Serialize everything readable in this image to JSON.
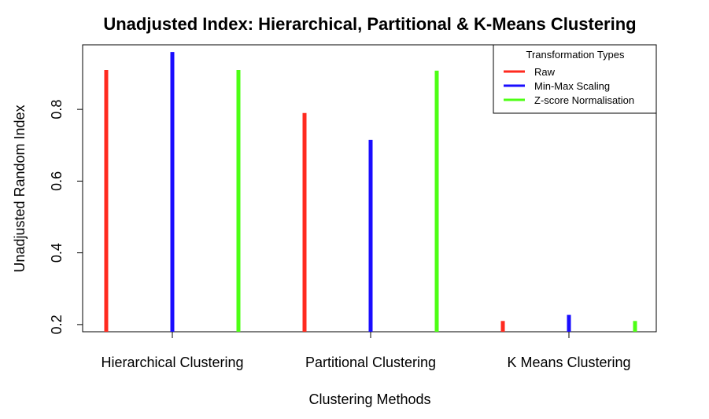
{
  "chart_data": {
    "type": "bar",
    "title": "Unadjusted Index: Hierarchical, Partitional & K-Means Clustering",
    "xlabel": "Clustering Methods",
    "ylabel": "Unadjusted Random Index",
    "categories": [
      "Hierarchical Clustering",
      "Partitional Clustering",
      "K Means Clustering"
    ],
    "series": [
      {
        "name": "Raw",
        "color": "#ff2a1f",
        "values": [
          0.91,
          0.79,
          0.21
        ]
      },
      {
        "name": "Min-Max Scaling",
        "color": "#1a0dff",
        "values": [
          0.96,
          0.715,
          0.227
        ]
      },
      {
        "name": "Z-score Normalisation",
        "color": "#4dff14",
        "values": [
          0.91,
          0.908,
          0.21
        ]
      }
    ],
    "ylim": [
      0.18,
      0.98
    ],
    "yticks": [
      0.2,
      0.4,
      0.6,
      0.8
    ],
    "ytick_labels": [
      "0.2",
      "0.4",
      "0.6",
      "0.8"
    ],
    "legend": {
      "title": "Transformation Types",
      "position": "top-right"
    },
    "grid": false
  }
}
